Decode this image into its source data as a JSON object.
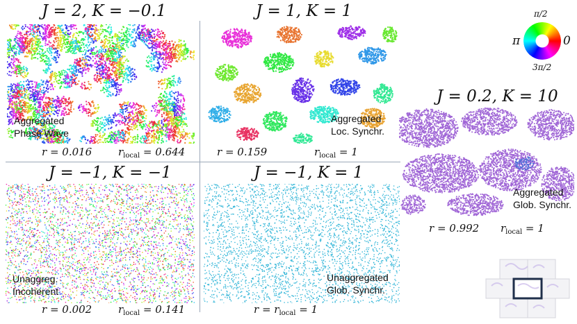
{
  "panels": [
    {
      "id": "p1",
      "title": "J = 2, K = −0.1",
      "label_lines": [
        "Aggregated",
        "Phase Wave"
      ],
      "r": "r = 0.016",
      "rlocal": "r",
      "rlocal_sub": "local",
      "rlocal_val": " = 0.644",
      "pattern": "phase-wave"
    },
    {
      "id": "p2",
      "title": "J = 1, K = 1",
      "label_lines": [
        "Aggregated",
        "Loc. Synchr."
      ],
      "r": "r = 0.159",
      "rlocal": "r",
      "rlocal_sub": "local",
      "rlocal_val": " = 1",
      "pattern": "local-sync"
    },
    {
      "id": "p3",
      "title": "J = −1, K = −1",
      "label_lines": [
        "Unaggreg.",
        "Incoherent"
      ],
      "r": "r = 0.002",
      "rlocal": "r",
      "rlocal_sub": "local",
      "rlocal_val": " = 0.141",
      "pattern": "incoherent"
    },
    {
      "id": "p4",
      "title": "J = −1, K = 1",
      "label_lines": [
        "Unaggregated",
        "Glob. Synchr."
      ],
      "r": "r = r",
      "rlocal": "",
      "rlocal_sub": "local",
      "rlocal_val": " = 1",
      "pattern": "global-sync-unagg"
    },
    {
      "id": "p5",
      "title": "J = 0.2, K = 10",
      "label_lines": [
        "Aggregated",
        "Glob. Synchr."
      ],
      "r": "r = 0.992",
      "rlocal": "r",
      "rlocal_sub": "local",
      "rlocal_val": " = 1",
      "pattern": "global-sync-agg"
    }
  ],
  "color_wheel": {
    "top": "π/2",
    "left": "π",
    "right": "0",
    "bottom": "3π/2"
  },
  "colors": {
    "divider": "#9aa7b8",
    "global_sync_unagg": "#33b6d8",
    "global_sync_agg": "#a066d6",
    "tile_border": "#1f2f4a"
  },
  "icons": [
    "phase-color-wheel-icon",
    "periodic-tiling-icon"
  ]
}
